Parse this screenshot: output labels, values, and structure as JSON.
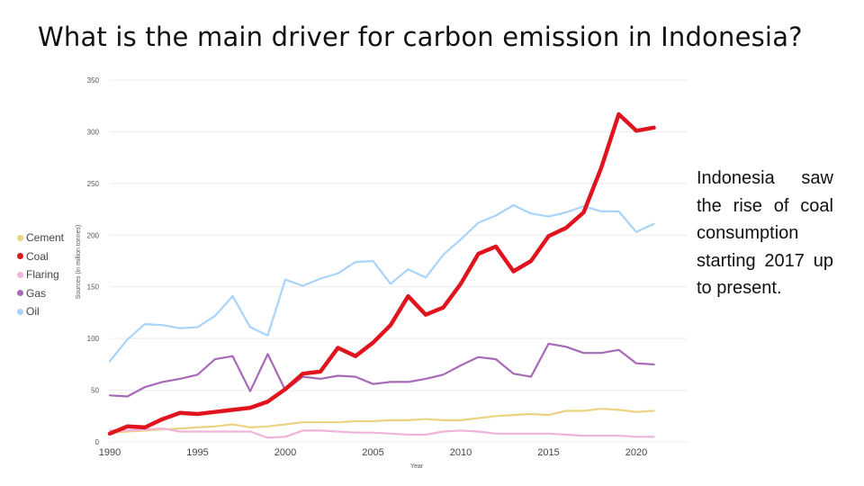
{
  "page": {
    "title": "What is the main driver for carbon emission in Indonesia?",
    "side_text": "Indonesia saw the rise of coal consumption starting 2017 up to present."
  },
  "chart_data": {
    "type": "line",
    "xlabel": "Year",
    "ylabel": "Sources (in million tonnes)",
    "xlim": [
      1990,
      2021
    ],
    "ylim": [
      0,
      350
    ],
    "y_ticks": [
      0,
      50,
      100,
      150,
      200,
      250,
      300,
      350
    ],
    "x_ticks": [
      1990,
      1995,
      2000,
      2005,
      2010,
      2015,
      2020
    ],
    "grid": true,
    "legend_position": "left",
    "x": [
      1990,
      1991,
      1992,
      1993,
      1994,
      1995,
      1996,
      1997,
      1998,
      1999,
      2000,
      2001,
      2002,
      2003,
      2004,
      2005,
      2006,
      2007,
      2008,
      2009,
      2010,
      2011,
      2012,
      2013,
      2014,
      2015,
      2016,
      2017,
      2018,
      2019,
      2020,
      2021
    ],
    "series": [
      {
        "name": "Cement",
        "color": "#ecd282",
        "width": 2.2,
        "values": [
          9,
          10,
          11,
          12,
          13,
          14,
          15,
          17,
          14,
          15,
          17,
          19,
          19,
          19,
          20,
          20,
          21,
          21,
          22,
          21,
          21,
          23,
          25,
          26,
          27,
          26,
          30,
          30,
          32,
          31,
          29,
          30
        ]
      },
      {
        "name": "Coal",
        "color": "#e0141e",
        "width": 4.5,
        "values": [
          8,
          15,
          14,
          22,
          28,
          27,
          29,
          31,
          33,
          39,
          51,
          66,
          68,
          91,
          83,
          96,
          113,
          141,
          123,
          130,
          153,
          182,
          189,
          165,
          175,
          199,
          207,
          222,
          265,
          317,
          301,
          304
        ]
      },
      {
        "name": "Flaring",
        "color": "#f0b3dc",
        "width": 2.2,
        "values": [
          11,
          11,
          12,
          13,
          10,
          10,
          10,
          10,
          10,
          4,
          5,
          11,
          11,
          10,
          9,
          9,
          8,
          7,
          7,
          10,
          11,
          10,
          8,
          8,
          8,
          8,
          7,
          6,
          6,
          6,
          5,
          5
        ]
      },
      {
        "name": "Gas",
        "color": "#a869b7",
        "width": 2.2,
        "values": [
          45,
          44,
          53,
          58,
          61,
          65,
          80,
          83,
          49,
          85,
          50,
          63,
          61,
          64,
          63,
          56,
          58,
          58,
          61,
          65,
          74,
          82,
          80,
          66,
          63,
          95,
          92,
          86,
          86,
          89,
          76,
          75
        ]
      },
      {
        "name": "Oil",
        "color": "#a8d4fb",
        "width": 2.2,
        "values": [
          78,
          99,
          114,
          113,
          110,
          111,
          122,
          141,
          111,
          103,
          157,
          151,
          158,
          163,
          174,
          175,
          153,
          167,
          159,
          181,
          196,
          212,
          219,
          229,
          221,
          218,
          222,
          228,
          223,
          223,
          203,
          211
        ]
      }
    ]
  }
}
